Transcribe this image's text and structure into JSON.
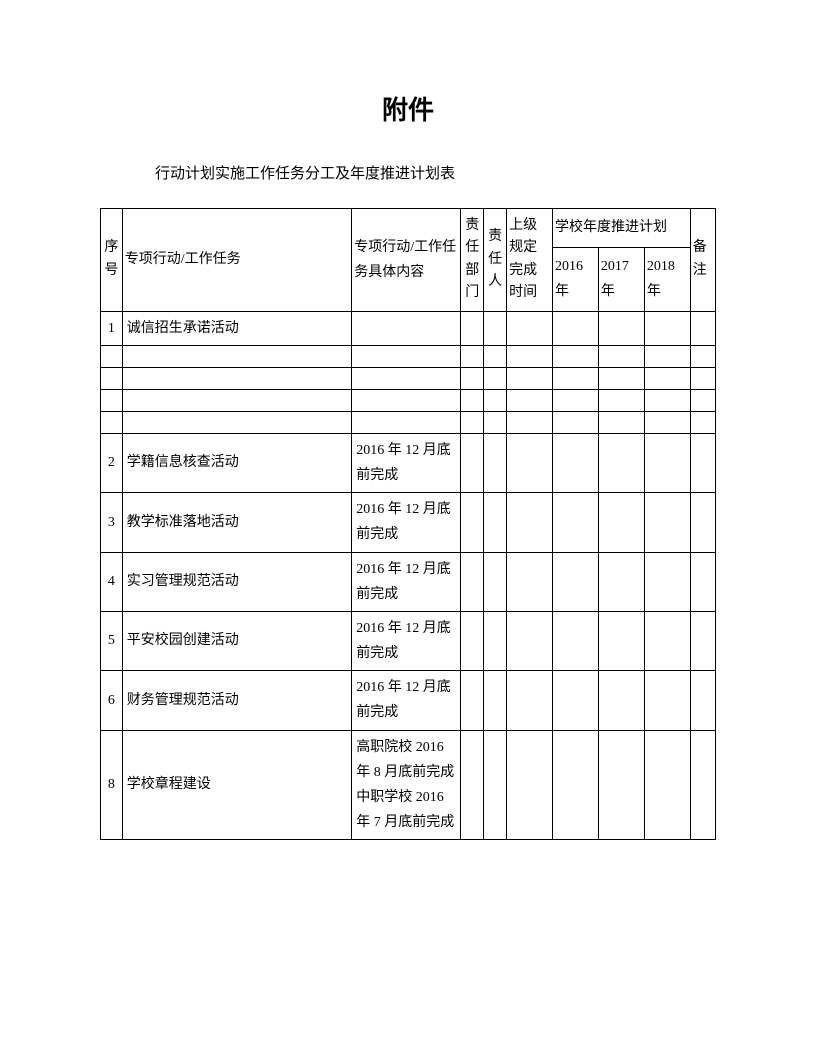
{
  "document": {
    "title": "附件",
    "subtitle": "行动计划实施工作任务分工及年度推进计划表",
    "background_color": "#ffffff",
    "text_color": "#000000",
    "border_color": "#000000",
    "title_fontsize": 26,
    "subtitle_fontsize": 15,
    "body_fontsize": 14
  },
  "table": {
    "headers": {
      "seq": "序号",
      "task": "专项行动/工作任务",
      "detail": "专项行动/工作任务具体内容",
      "dept": "责任部门",
      "person": "责任人",
      "time": "上级规定完成时间",
      "plan_group": "学校年度推进计划",
      "year1": "2016年",
      "year2": "2017年",
      "year3": "2018年",
      "note": "备注"
    },
    "rows": [
      {
        "seq": "1",
        "task": "诚信招生承诺活动",
        "detail": "",
        "dept": "",
        "person": "",
        "time": "",
        "y1": "",
        "y2": "",
        "y3": "",
        "note": ""
      },
      {
        "seq": "",
        "task": "",
        "detail": "",
        "dept": "",
        "person": "",
        "time": "",
        "y1": "",
        "y2": "",
        "y3": "",
        "note": "",
        "blank": true
      },
      {
        "seq": "",
        "task": "",
        "detail": "",
        "dept": "",
        "person": "",
        "time": "",
        "y1": "",
        "y2": "",
        "y3": "",
        "note": "",
        "blank": true
      },
      {
        "seq": "",
        "task": "",
        "detail": "",
        "dept": "",
        "person": "",
        "time": "",
        "y1": "",
        "y2": "",
        "y3": "",
        "note": "",
        "blank": true
      },
      {
        "seq": "",
        "task": "",
        "detail": "",
        "dept": "",
        "person": "",
        "time": "",
        "y1": "",
        "y2": "",
        "y3": "",
        "note": "",
        "blank": true
      },
      {
        "seq": "2",
        "task": "学籍信息核查活动",
        "detail": "2016 年 12 月底前完成",
        "dept": "",
        "person": "",
        "time": "",
        "y1": "",
        "y2": "",
        "y3": "",
        "note": ""
      },
      {
        "seq": "3",
        "task": "教学标准落地活动",
        "detail": "2016 年 12 月底前完成",
        "dept": "",
        "person": "",
        "time": "",
        "y1": "",
        "y2": "",
        "y3": "",
        "note": ""
      },
      {
        "seq": "4",
        "task": "实习管理规范活动",
        "detail": "2016 年 12 月底前完成",
        "dept": "",
        "person": "",
        "time": "",
        "y1": "",
        "y2": "",
        "y3": "",
        "note": ""
      },
      {
        "seq": "5",
        "task": "平安校园创建活动",
        "detail": "2016 年 12 月底前完成",
        "dept": "",
        "person": "",
        "time": "",
        "y1": "",
        "y2": "",
        "y3": "",
        "note": ""
      },
      {
        "seq": "6",
        "task": "财务管理规范活动",
        "detail": "2016 年 12 月底前完成",
        "dept": "",
        "person": "",
        "time": "",
        "y1": "",
        "y2": "",
        "y3": "",
        "note": ""
      },
      {
        "seq": "8",
        "task": "学校章程建设",
        "detail": "高职院校 2016 年 8 月底前完成 中职学校 2016 年 7 月底前完成",
        "dept": "",
        "person": "",
        "time": "",
        "y1": "",
        "y2": "",
        "y3": "",
        "note": ""
      }
    ]
  }
}
